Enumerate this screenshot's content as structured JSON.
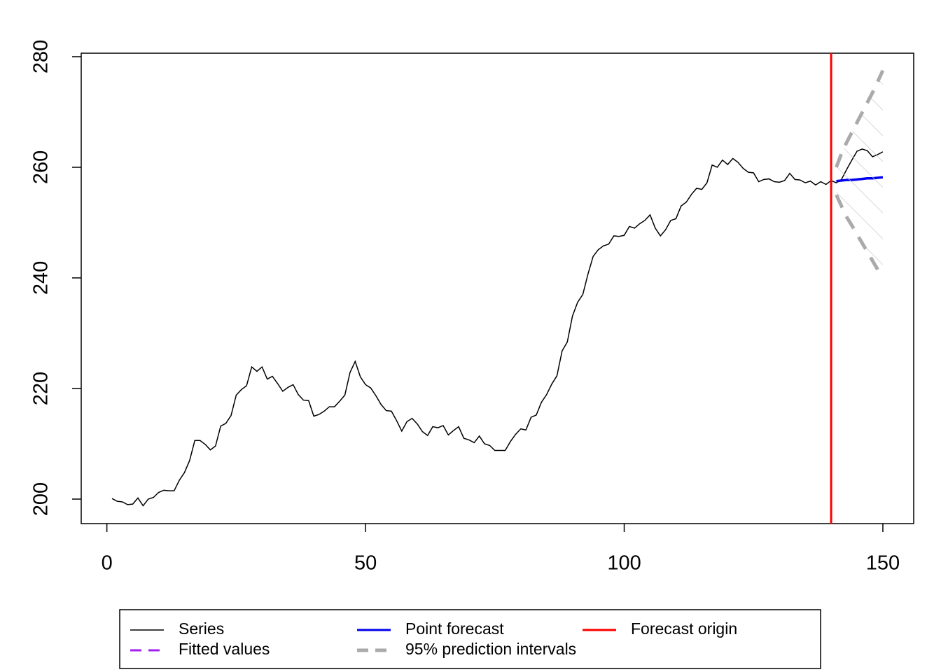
{
  "chart_data": {
    "type": "line",
    "xlim": [
      -4.96,
      155.96
    ],
    "ylim": [
      195.57,
      280.63
    ],
    "xticks": [
      0,
      50,
      100,
      150
    ],
    "yticks": [
      200,
      220,
      240,
      260,
      280
    ],
    "series": [
      {
        "name": "Series",
        "color": "#000000",
        "style": "solid",
        "x": [
          1,
          2,
          3,
          4,
          5,
          6,
          7,
          8,
          9,
          10,
          11,
          12,
          13,
          14,
          15,
          16,
          17,
          18,
          19,
          20,
          21,
          22,
          23,
          24,
          25,
          26,
          27,
          28,
          29,
          30,
          31,
          32,
          33,
          34,
          35,
          36,
          37,
          38,
          39,
          40,
          41,
          42,
          43,
          44,
          45,
          46,
          47,
          48,
          49,
          50,
          51,
          52,
          53,
          54,
          55,
          56,
          57,
          58,
          59,
          60,
          61,
          62,
          63,
          64,
          65,
          66,
          67,
          68,
          69,
          70,
          71,
          72,
          73,
          74,
          75,
          76,
          77,
          78,
          79,
          80,
          81,
          82,
          83,
          84,
          85,
          86,
          87,
          88,
          89,
          90,
          91,
          92,
          93,
          94,
          95,
          96,
          97,
          98,
          99,
          100,
          101,
          102,
          103,
          104,
          105,
          106,
          107,
          108,
          109,
          110,
          111,
          112,
          113,
          114,
          115,
          116,
          117,
          118,
          119,
          120,
          121,
          122,
          123,
          124,
          125,
          126,
          127,
          128,
          129,
          130,
          131,
          132,
          133,
          134,
          135,
          136,
          137,
          138,
          139,
          140,
          141,
          142,
          143,
          144,
          145,
          146,
          147,
          148,
          149,
          150
        ],
        "values": [
          200.1,
          199.6,
          199.5,
          199.0,
          199.1,
          200.2,
          198.8,
          200.0,
          200.3,
          201.2,
          201.6,
          201.5,
          201.5,
          203.4,
          204.8,
          207.0,
          210.6,
          210.6,
          209.9,
          208.9,
          209.6,
          213.2,
          213.7,
          215.1,
          218.8,
          219.8,
          220.5,
          223.9,
          223.1,
          223.9,
          221.7,
          222.2,
          220.9,
          219.5,
          220.2,
          220.7,
          218.9,
          217.9,
          217.8,
          215.0,
          215.3,
          215.9,
          216.7,
          216.7,
          217.7,
          218.8,
          222.9,
          224.9,
          222.1,
          220.7,
          220.1,
          218.7,
          217.1,
          216.0,
          215.9,
          214.2,
          212.3,
          214.0,
          214.6,
          213.6,
          212.2,
          211.5,
          213.1,
          212.9,
          213.3,
          211.6,
          212.4,
          213.1,
          211.0,
          210.7,
          210.2,
          211.4,
          210.0,
          209.7,
          208.8,
          208.8,
          208.8,
          210.4,
          211.7,
          212.7,
          212.5,
          214.8,
          215.2,
          217.5,
          218.9,
          220.8,
          222.3,
          226.8,
          228.4,
          233.1,
          235.6,
          237.0,
          240.7,
          243.9,
          245.1,
          245.8,
          246.1,
          247.6,
          247.5,
          247.7,
          249.3,
          249.0,
          249.8,
          250.4,
          251.4,
          249.0,
          247.6,
          248.7,
          250.4,
          250.7,
          253.0,
          253.7,
          255.1,
          256.2,
          256.0,
          257.2,
          260.4,
          260.0,
          261.3,
          260.5,
          261.6,
          260.9,
          259.8,
          259.1,
          259.0,
          257.4,
          257.8,
          257.9,
          257.4,
          257.3,
          257.6,
          258.9,
          257.8,
          257.7,
          257.2,
          257.5,
          256.8,
          257.4,
          256.9,
          257.6,
          257.2,
          257.8,
          259.6,
          261.3,
          262.9,
          263.3,
          263.0,
          261.9,
          262.3,
          262.8
        ]
      },
      {
        "name": "Fitted values",
        "color": "#a020f0",
        "style": "dashed"
      },
      {
        "name": "Point forecast",
        "color": "#0000ee",
        "style": "solid",
        "x": [
          141,
          142,
          143,
          144,
          145,
          146,
          147,
          148,
          149,
          150
        ],
        "values": [
          257.5,
          257.6,
          257.7,
          257.7,
          257.8,
          257.9,
          258.0,
          258.0,
          258.1,
          258.2
        ]
      },
      {
        "name": "95% prediction intervals",
        "color": "#aaaaaa",
        "style": "dashed",
        "x": [
          141,
          142,
          143,
          144,
          145,
          146,
          147,
          148,
          149,
          150
        ],
        "upper": [
          260.0,
          262.5,
          264.5,
          266.3,
          268.1,
          269.9,
          271.7,
          273.5,
          275.5,
          277.5
        ],
        "lower": [
          255.0,
          253.0,
          251.0,
          249.5,
          247.9,
          246.3,
          244.7,
          243.1,
          241.5,
          240.0
        ]
      },
      {
        "name": "Forecast origin",
        "color": "#ff0000",
        "style": "solid",
        "value": 140
      }
    ]
  }
}
